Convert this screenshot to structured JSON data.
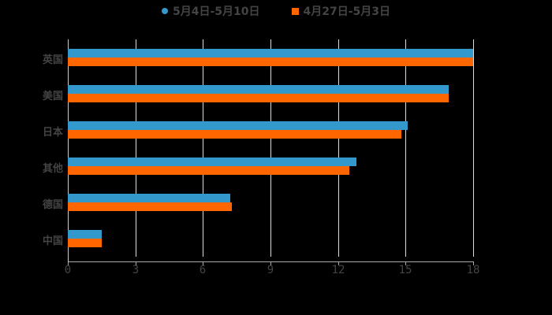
{
  "chart_data": {
    "type": "bar",
    "orientation": "horizontal",
    "title": "",
    "xlabel": "",
    "ylabel": "",
    "categories": [
      "英国",
      "美国",
      "日本",
      "其他",
      "德国",
      "中国"
    ],
    "series": [
      {
        "name": "5月4日-5月10日",
        "color": "#3399cc",
        "values": [
          18,
          16.9,
          15.1,
          12.8,
          7.2,
          1.5
        ]
      },
      {
        "name": "4月27日-5月3日",
        "color": "#ff6600",
        "values": [
          18,
          16.9,
          14.8,
          12.5,
          7.3,
          1.5
        ]
      }
    ],
    "xlim": [
      0,
      18
    ],
    "xticks": [
      "0",
      "3",
      "6",
      "9",
      "12",
      "15",
      "18"
    ],
    "grid": true,
    "legend_position": "top"
  },
  "legend": {
    "items": [
      {
        "label": "5月4日-5月10日",
        "color": "#3399cc",
        "shape": "circle"
      },
      {
        "label": "4月27日-5月3日",
        "color": "#ff6600",
        "shape": "square"
      }
    ]
  }
}
